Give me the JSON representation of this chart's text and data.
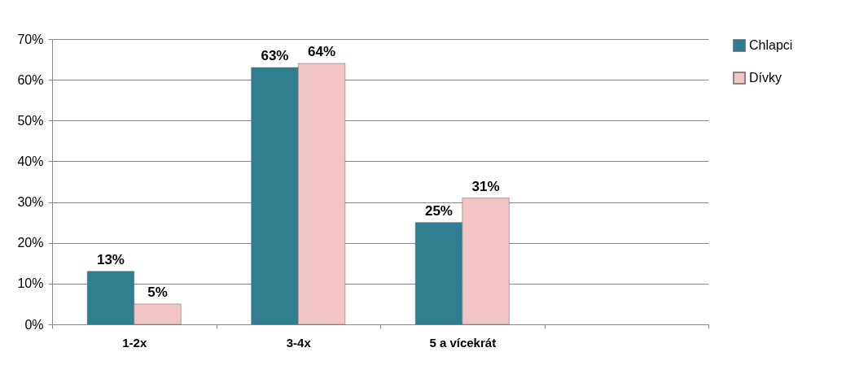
{
  "chart_data": {
    "type": "bar",
    "categories": [
      "1-2x",
      "3-4x",
      "5 a vícekrát",
      null
    ],
    "series": [
      {
        "name": "Chlapci",
        "color": "#2f7f90",
        "values": [
          13,
          63,
          25,
          null
        ],
        "value_labels": [
          "13%",
          "63%",
          "25%",
          null
        ]
      },
      {
        "name": "Dívky",
        "color": "#f2c4c4",
        "values": [
          5,
          64,
          31,
          null
        ],
        "value_labels": [
          "5%",
          "64%",
          "31%",
          null
        ]
      }
    ],
    "ylim": [
      0,
      70
    ],
    "yticks": [
      {
        "value": 0,
        "label": "0%"
      },
      {
        "value": 10,
        "label": "10%"
      },
      {
        "value": 20,
        "label": "20%"
      },
      {
        "value": 30,
        "label": "30%"
      },
      {
        "value": 40,
        "label": "40%"
      },
      {
        "value": 50,
        "label": "50%"
      },
      {
        "value": 60,
        "label": "60%"
      },
      {
        "value": 70,
        "label": "70%"
      }
    ],
    "grid": "y",
    "legend": "right"
  }
}
